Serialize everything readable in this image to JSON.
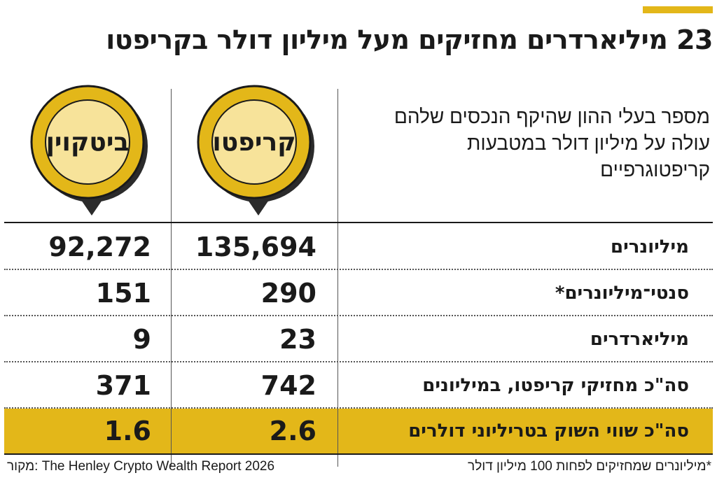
{
  "header": {
    "title": "23 מיליארדרים מחזיקים מעל מיליון דולר בקריפטו",
    "subtitle": "מספר בעלי ההון שהיקף הנכסים שלהם עולה על מיליון דולר במטבעות קריפטוגרפיים"
  },
  "columns": {
    "crypto": "קריפטו",
    "bitcoin": "ביטקוין"
  },
  "chart_data": {
    "type": "table",
    "columns": [
      "קריפטו",
      "ביטקוין"
    ],
    "rows": [
      {
        "label": "מיליונרים",
        "crypto": "135,694",
        "bitcoin": "92,272"
      },
      {
        "label": "סנטי־מיליונרים*",
        "crypto": "290",
        "bitcoin": "151"
      },
      {
        "label": "מיליארדרים",
        "crypto": "23",
        "bitcoin": "9"
      },
      {
        "label": "סה\"כ מחזיקי קריפטו, במיליונים",
        "crypto": "742",
        "bitcoin": "371"
      },
      {
        "label": "סה\"כ שווי השוק בטריליוני דולרים",
        "crypto": "2.6",
        "bitcoin": "1.6",
        "highlighted": true
      }
    ]
  },
  "footer": {
    "source": "The Henley Crypto Wealth Report 2026 :מקור",
    "note": "*מיליונרים שמחזיקים לפחות 100 מיליון דולר"
  },
  "colors": {
    "accent": "#e3b719",
    "coin_inner": "#f7e39a",
    "coin_shadow": "#2b2b2b"
  },
  "icons": {
    "crypto_coin": "coin-pin-icon",
    "bitcoin_coin": "coin-pin-icon"
  }
}
